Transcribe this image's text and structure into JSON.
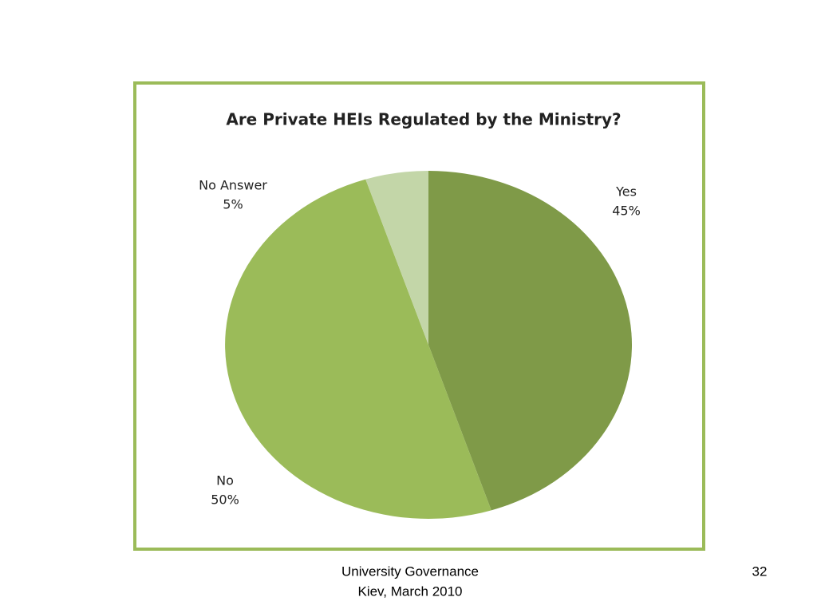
{
  "chart_data": {
    "type": "pie",
    "title": "Are Private HEIs Regulated by the Ministry?",
    "categories": [
      "Yes",
      "No",
      "No Answer"
    ],
    "values": [
      45,
      50,
      5
    ],
    "value_labels": [
      "45%",
      "50%",
      "5%"
    ],
    "colors": [
      "#7f9a48",
      "#9bbb59",
      "#c3d6a8"
    ]
  },
  "footer": {
    "lines": [
      "University Governance",
      "Kiev, March 2010"
    ],
    "page": "32"
  }
}
